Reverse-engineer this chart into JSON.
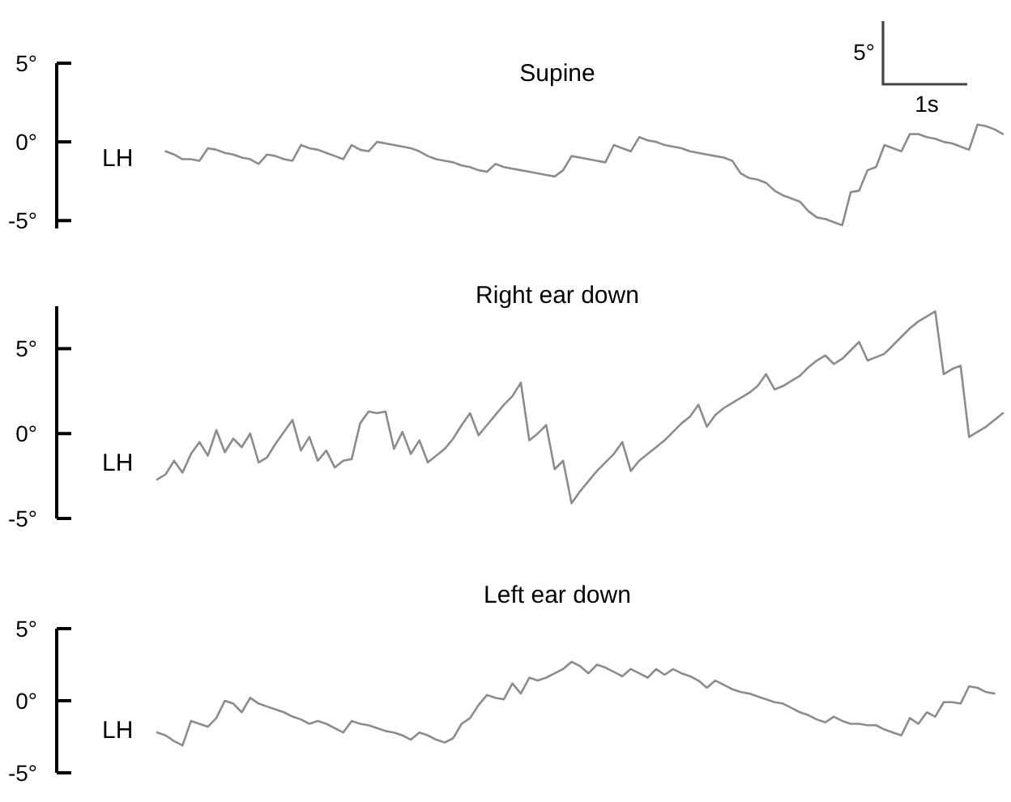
{
  "chart_data": [
    {
      "type": "line",
      "title": "Supine",
      "ylabel": "LH",
      "color": "#8c8c8c",
      "tick_labels": "y",
      "annotations": [
        "5°",
        "1s"
      ],
      "categories": [
        null,
        null,
        null,
        null,
        null,
        null,
        null,
        null,
        null,
        null,
        null,
        null,
        null,
        null,
        null,
        null,
        null,
        null,
        null,
        null,
        null,
        null,
        null,
        null,
        null,
        null,
        null,
        null,
        null,
        null,
        null,
        null,
        null,
        null,
        null,
        null,
        null,
        null,
        null,
        null,
        null,
        null,
        null,
        null,
        null,
        null,
        null,
        null,
        null,
        null,
        null,
        null,
        null,
        null,
        null,
        null,
        null,
        null,
        null,
        null,
        null,
        null,
        null,
        null,
        null,
        null,
        null,
        null,
        null,
        null,
        null,
        null,
        null,
        null,
        null,
        null,
        null,
        null,
        null,
        null,
        null,
        null,
        null,
        null,
        null,
        null,
        null,
        null,
        null,
        null,
        null,
        null,
        null,
        null,
        null,
        null,
        null,
        null,
        null,
        null,
        null
      ],
      "ylim": [
        -5.5,
        5
      ],
      "yticks": [
        {
          "value": 5,
          "label": "5°"
        },
        {
          "value": 0,
          "label": "0°"
        },
        {
          "value": -5,
          "label": "-5°"
        }
      ],
      "values": [
        null,
        -0.6,
        -0.8,
        -1.1,
        -1.1,
        -1.2,
        -0.4,
        -0.5,
        -0.7,
        -0.8,
        -1.0,
        -1.1,
        -1.4,
        -0.8,
        -0.9,
        -1.1,
        -1.2,
        -0.2,
        -0.4,
        -0.5,
        -0.7,
        -0.9,
        -1.1,
        -0.2,
        -0.5,
        -0.6,
        0.0,
        -0.1,
        -0.2,
        -0.3,
        -0.4,
        -0.6,
        -0.9,
        -1.1,
        -1.2,
        -1.3,
        -1.5,
        -1.6,
        -1.8,
        -1.9,
        -1.4,
        -1.6,
        -1.7,
        -1.8,
        -1.9,
        -2.0,
        -2.1,
        -2.2,
        -1.8,
        -0.9,
        -1.0,
        -1.1,
        -1.2,
        -1.3,
        -0.2,
        -0.4,
        -0.6,
        0.3,
        0.1,
        0.0,
        -0.2,
        -0.3,
        -0.4,
        -0.6,
        -0.7,
        -0.8,
        -0.9,
        -1.0,
        -1.2,
        -2.0,
        -2.3,
        -2.4,
        -2.6,
        -3.1,
        -3.4,
        -3.6,
        -3.8,
        -4.4,
        -4.8,
        -4.9,
        -5.1,
        -5.3,
        -3.2,
        -3.1,
        -1.8,
        -1.6,
        -0.2,
        -0.4,
        -0.6,
        0.5,
        0.5,
        0.3,
        0.2,
        0.0,
        -0.1,
        -0.3,
        -0.5,
        1.1,
        1.0,
        0.8,
        0.5
      ]
    },
    {
      "type": "line",
      "title": "Right ear down",
      "ylabel": "LH",
      "color": "#8c8c8c",
      "tick_labels": "y",
      "categories": [
        null,
        null,
        null,
        null,
        null,
        null,
        null,
        null,
        null,
        null,
        null,
        null,
        null,
        null,
        null,
        null,
        null,
        null,
        null,
        null,
        null,
        null,
        null,
        null,
        null,
        null,
        null,
        null,
        null,
        null,
        null,
        null,
        null,
        null,
        null,
        null,
        null,
        null,
        null,
        null,
        null,
        null,
        null,
        null,
        null,
        null,
        null,
        null,
        null,
        null,
        null,
        null,
        null,
        null,
        null,
        null,
        null,
        null,
        null,
        null,
        null,
        null,
        null,
        null,
        null,
        null,
        null,
        null,
        null,
        null,
        null,
        null,
        null,
        null,
        null,
        null,
        null,
        null,
        null,
        null,
        null,
        null,
        null,
        null,
        null,
        null,
        null,
        null,
        null,
        null,
        null,
        null,
        null,
        null,
        null,
        null,
        null,
        null,
        null,
        null,
        null
      ],
      "ylim": [
        -5,
        7.5
      ],
      "yticks": [
        {
          "value": 5,
          "label": "5°"
        },
        {
          "value": 0,
          "label": "0°"
        },
        {
          "value": -5,
          "label": "-5°"
        }
      ],
      "values": [
        -2.7,
        -2.4,
        -1.6,
        -2.3,
        -1.2,
        -0.5,
        -1.3,
        0.2,
        -1.1,
        -0.3,
        -0.8,
        0.0,
        -1.7,
        -1.4,
        -0.6,
        0.1,
        0.8,
        -1.0,
        -0.2,
        -1.6,
        -1.0,
        -2.0,
        -1.6,
        -1.5,
        0.6,
        1.3,
        1.2,
        1.3,
        -0.9,
        0.1,
        -1.2,
        -0.4,
        -1.7,
        -1.3,
        -0.9,
        -0.3,
        0.5,
        1.2,
        -0.1,
        0.5,
        1.1,
        1.7,
        2.2,
        3.0,
        -0.4,
        0.0,
        0.5,
        -2.1,
        -1.6,
        -4.1,
        -3.4,
        -2.8,
        -2.2,
        -1.7,
        -1.2,
        -0.5,
        -2.2,
        -1.6,
        -1.2,
        -0.8,
        -0.4,
        0.1,
        0.6,
        1.0,
        1.7,
        0.4,
        1.1,
        1.5,
        1.8,
        2.1,
        2.4,
        2.8,
        3.5,
        2.6,
        2.8,
        3.1,
        3.4,
        3.9,
        4.3,
        4.6,
        4.1,
        4.4,
        4.9,
        5.4,
        4.3,
        4.5,
        4.7,
        5.2,
        5.7,
        6.2,
        6.6,
        6.9,
        7.2,
        3.5,
        3.8,
        4.0,
        -0.2,
        0.1,
        0.4,
        0.8,
        1.2
      ]
    },
    {
      "type": "line",
      "title": "Left ear down",
      "ylabel": "LH",
      "color": "#8c8c8c",
      "tick_labels": "y",
      "categories": [
        null,
        null,
        null,
        null,
        null,
        null,
        null,
        null,
        null,
        null,
        null,
        null,
        null,
        null,
        null,
        null,
        null,
        null,
        null,
        null,
        null,
        null,
        null,
        null,
        null,
        null,
        null,
        null,
        null,
        null,
        null,
        null,
        null,
        null,
        null,
        null,
        null,
        null,
        null,
        null,
        null,
        null,
        null,
        null,
        null,
        null,
        null,
        null,
        null,
        null,
        null,
        null,
        null,
        null,
        null,
        null,
        null,
        null,
        null,
        null,
        null,
        null,
        null,
        null,
        null,
        null,
        null,
        null,
        null,
        null,
        null,
        null,
        null,
        null,
        null,
        null,
        null,
        null,
        null,
        null,
        null,
        null,
        null,
        null,
        null,
        null,
        null,
        null,
        null,
        null,
        null,
        null,
        null,
        null,
        null,
        null,
        null,
        null,
        null,
        null,
        null
      ],
      "ylim": [
        -5,
        5
      ],
      "yticks": [
        {
          "value": 5,
          "label": "5°"
        },
        {
          "value": 0,
          "label": "0°"
        },
        {
          "value": -5,
          "label": "-5°"
        }
      ],
      "values": [
        -2.2,
        -2.4,
        -2.8,
        -3.1,
        -1.4,
        -1.6,
        -1.8,
        -1.2,
        0.0,
        -0.2,
        -0.8,
        0.2,
        -0.2,
        -0.4,
        -0.6,
        -0.8,
        -1.1,
        -1.3,
        -1.6,
        -1.4,
        -1.6,
        -1.9,
        -2.2,
        -1.4,
        -1.6,
        -1.7,
        -1.9,
        -2.1,
        -2.2,
        -2.4,
        -2.7,
        -2.2,
        -2.4,
        -2.7,
        -2.9,
        -2.6,
        -1.6,
        -1.2,
        -0.3,
        0.4,
        0.2,
        0.1,
        1.2,
        0.5,
        1.6,
        1.4,
        1.6,
        1.9,
        2.2,
        2.7,
        2.4,
        1.9,
        2.5,
        2.3,
        2.0,
        1.7,
        2.2,
        1.9,
        1.6,
        2.2,
        1.8,
        2.2,
        1.9,
        1.7,
        1.4,
        0.9,
        1.4,
        1.1,
        0.8,
        0.6,
        0.5,
        0.3,
        0.1,
        -0.1,
        -0.2,
        -0.5,
        -0.8,
        -1.0,
        -1.3,
        -1.5,
        -1.1,
        -1.4,
        -1.6,
        -1.6,
        -1.7,
        -1.7,
        -2.0,
        -2.2,
        -2.4,
        -1.2,
        -1.6,
        -0.8,
        -1.1,
        -0.1,
        -0.1,
        -0.2,
        1.0,
        0.9,
        0.6,
        0.5,
        null
      ]
    }
  ]
}
